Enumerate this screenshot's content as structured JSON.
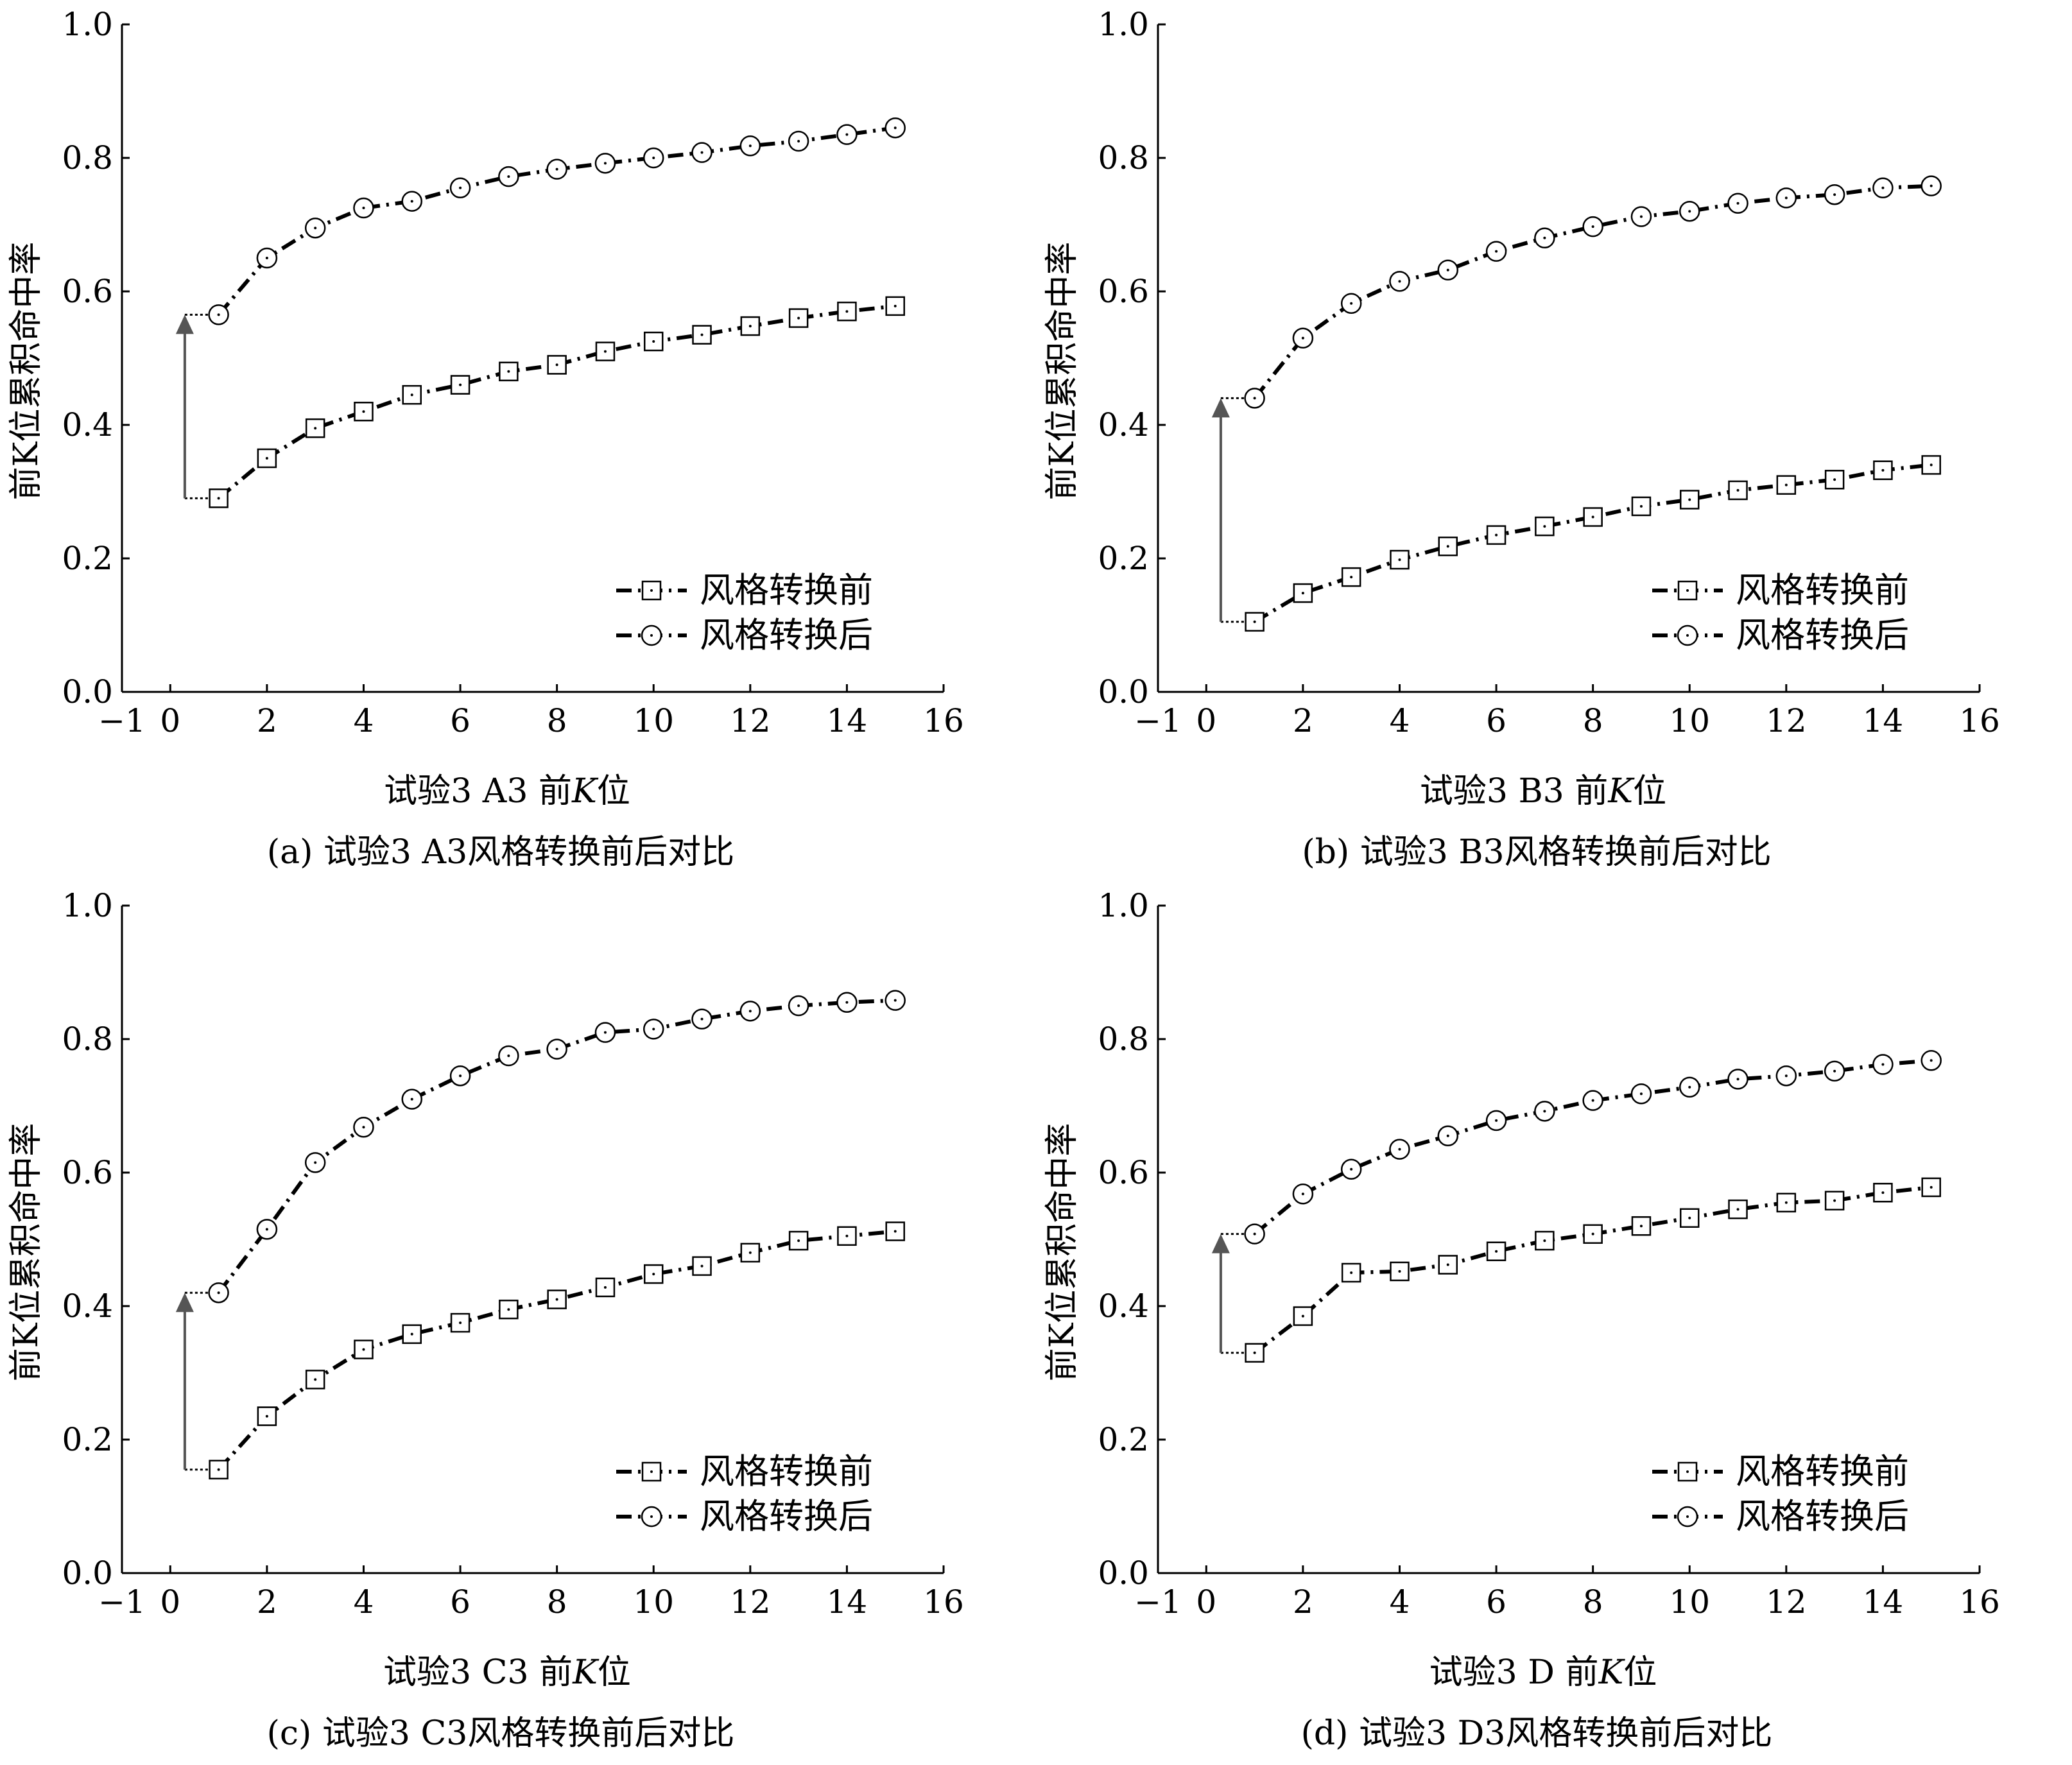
{
  "figure": {
    "charts": [
      {
        "id": "a",
        "type": "line",
        "xlabel_pre": "试验3 A3 前",
        "xlabel_italic": "K",
        "xlabel_post": "位",
        "ylabel": "前K位累积命中率",
        "subtitle": "(a) 试验3 A3风格转换前后对比",
        "xlim": [
          -1,
          16
        ],
        "ylim": [
          0.0,
          1.0
        ],
        "xticks": [
          -1,
          0,
          2,
          4,
          6,
          8,
          10,
          12,
          14,
          16
        ],
        "xtick_labels": [
          "−1",
          "0",
          "2",
          "4",
          "6",
          "8",
          "10",
          "12",
          "14",
          "16"
        ],
        "yticks": [
          0.0,
          0.2,
          0.4,
          0.6,
          0.8,
          1.0
        ],
        "ytick_labels": [
          "0.0",
          "0.2",
          "0.4",
          "0.6",
          "0.8",
          "1.0"
        ],
        "x": [
          1,
          2,
          3,
          4,
          5,
          6,
          7,
          8,
          9,
          10,
          11,
          12,
          13,
          14,
          15
        ],
        "series": [
          {
            "name": "风格转换前",
            "marker": "square",
            "values": [
              0.29,
              0.35,
              0.395,
              0.42,
              0.445,
              0.46,
              0.48,
              0.49,
              0.51,
              0.525,
              0.535,
              0.548,
              0.56,
              0.57,
              0.578
            ]
          },
          {
            "name": "风格转换后",
            "marker": "circle",
            "values": [
              0.565,
              0.65,
              0.695,
              0.725,
              0.735,
              0.755,
              0.772,
              0.783,
              0.792,
              0.8,
              0.808,
              0.818,
              0.825,
              0.835,
              0.845
            ]
          }
        ],
        "arrow": {
          "x": 0.3,
          "from": 0.29,
          "to": 0.565
        },
        "legend": "lower-right"
      },
      {
        "id": "b",
        "type": "line",
        "xlabel_pre": "试验3 B3 前",
        "xlabel_italic": "K",
        "xlabel_post": "位",
        "ylabel": "前K位累积命中率",
        "subtitle": "(b) 试验3 B3风格转换前后对比",
        "xlim": [
          -1,
          16
        ],
        "ylim": [
          0.0,
          1.0
        ],
        "xticks": [
          -1,
          0,
          2,
          4,
          6,
          8,
          10,
          12,
          14,
          16
        ],
        "xtick_labels": [
          "−1",
          "0",
          "2",
          "4",
          "6",
          "8",
          "10",
          "12",
          "14",
          "16"
        ],
        "yticks": [
          0.0,
          0.2,
          0.4,
          0.6,
          0.8,
          1.0
        ],
        "ytick_labels": [
          "0.0",
          "0.2",
          "0.4",
          "0.6",
          "0.8",
          "1.0"
        ],
        "x": [
          1,
          2,
          3,
          4,
          5,
          6,
          7,
          8,
          9,
          10,
          11,
          12,
          13,
          14,
          15
        ],
        "series": [
          {
            "name": "风格转换前",
            "marker": "square",
            "values": [
              0.105,
              0.148,
              0.172,
              0.198,
              0.218,
              0.235,
              0.248,
              0.262,
              0.278,
              0.288,
              0.302,
              0.31,
              0.318,
              0.332,
              0.34
            ]
          },
          {
            "name": "风格转换后",
            "marker": "circle",
            "values": [
              0.44,
              0.53,
              0.582,
              0.615,
              0.632,
              0.66,
              0.68,
              0.697,
              0.712,
              0.72,
              0.732,
              0.74,
              0.745,
              0.755,
              0.758
            ]
          }
        ],
        "arrow": {
          "x": 0.3,
          "from": 0.105,
          "to": 0.44
        },
        "legend": "lower-right"
      },
      {
        "id": "c",
        "type": "line",
        "xlabel_pre": "试验3 C3 前",
        "xlabel_italic": "K",
        "xlabel_post": "位",
        "ylabel": "前K位累积命中率",
        "subtitle": "(c) 试验3 C3风格转换前后对比",
        "xlim": [
          -1,
          16
        ],
        "ylim": [
          0.0,
          1.0
        ],
        "xticks": [
          -1,
          0,
          2,
          4,
          6,
          8,
          10,
          12,
          14,
          16
        ],
        "xtick_labels": [
          "−1",
          "0",
          "2",
          "4",
          "6",
          "8",
          "10",
          "12",
          "14",
          "16"
        ],
        "yticks": [
          0.0,
          0.2,
          0.4,
          0.6,
          0.8,
          1.0
        ],
        "ytick_labels": [
          "0.0",
          "0.2",
          "0.4",
          "0.6",
          "0.8",
          "1.0"
        ],
        "x": [
          1,
          2,
          3,
          4,
          5,
          6,
          7,
          8,
          9,
          10,
          11,
          12,
          13,
          14,
          15
        ],
        "series": [
          {
            "name": "风格转换前",
            "marker": "square",
            "values": [
              0.155,
              0.235,
              0.29,
              0.335,
              0.358,
              0.375,
              0.395,
              0.41,
              0.428,
              0.448,
              0.46,
              0.48,
              0.498,
              0.505,
              0.512
            ]
          },
          {
            "name": "风格转换后",
            "marker": "circle",
            "values": [
              0.42,
              0.515,
              0.615,
              0.668,
              0.71,
              0.745,
              0.775,
              0.785,
              0.81,
              0.815,
              0.83,
              0.842,
              0.85,
              0.855,
              0.858
            ]
          }
        ],
        "arrow": {
          "x": 0.3,
          "from": 0.155,
          "to": 0.42
        },
        "legend": "lower-right"
      },
      {
        "id": "d",
        "type": "line",
        "xlabel_pre": "试验3 D 前",
        "xlabel_italic": "K",
        "xlabel_post": "位",
        "ylabel": "前K位累积命中率",
        "subtitle": "(d) 试验3 D3风格转换前后对比",
        "xlim": [
          -1,
          16
        ],
        "ylim": [
          0.0,
          1.0
        ],
        "xticks": [
          -1,
          0,
          2,
          4,
          6,
          8,
          10,
          12,
          14,
          16
        ],
        "xtick_labels": [
          "−1",
          "0",
          "2",
          "4",
          "6",
          "8",
          "10",
          "12",
          "14",
          "16"
        ],
        "yticks": [
          0.0,
          0.2,
          0.4,
          0.6,
          0.8,
          1.0
        ],
        "ytick_labels": [
          "0.0",
          "0.2",
          "0.4",
          "0.6",
          "0.8",
          "1.0"
        ],
        "x": [
          1,
          2,
          3,
          4,
          5,
          6,
          7,
          8,
          9,
          10,
          11,
          12,
          13,
          14,
          15
        ],
        "series": [
          {
            "name": "风格转换前",
            "marker": "square",
            "values": [
              0.33,
              0.385,
              0.45,
              0.452,
              0.462,
              0.482,
              0.498,
              0.508,
              0.52,
              0.532,
              0.545,
              0.555,
              0.558,
              0.57,
              0.578
            ]
          },
          {
            "name": "风格转换后",
            "marker": "circle",
            "values": [
              0.508,
              0.568,
              0.605,
              0.635,
              0.655,
              0.678,
              0.692,
              0.708,
              0.718,
              0.728,
              0.74,
              0.745,
              0.752,
              0.762,
              0.768
            ]
          }
        ],
        "arrow": {
          "x": 0.3,
          "from": 0.33,
          "to": 0.508
        },
        "legend": "lower-right"
      }
    ]
  }
}
